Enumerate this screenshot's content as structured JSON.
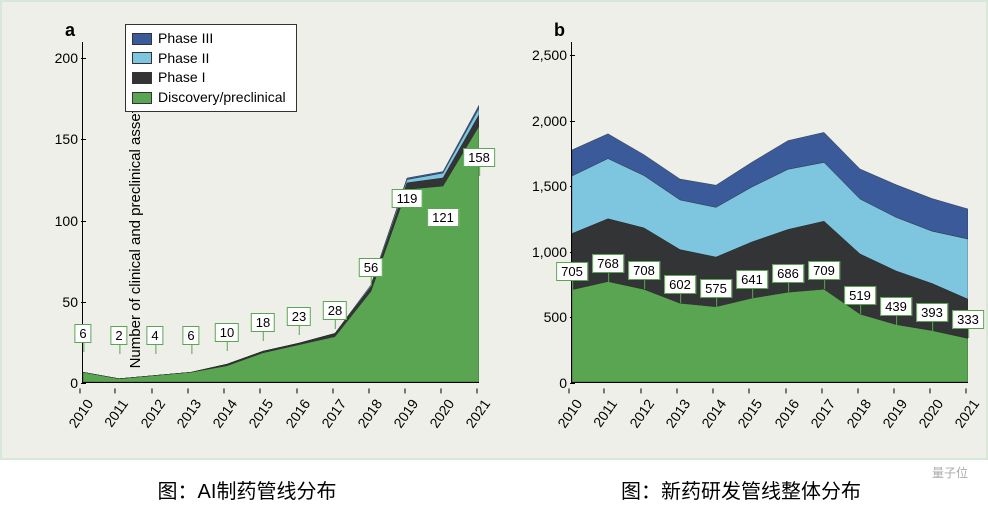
{
  "y_axis_label": "Number of clinical and preclinical assets",
  "legend": [
    {
      "label": "Phase III",
      "color": "#3a5a9a"
    },
    {
      "label": "Phase II",
      "color": "#7ec5e0"
    },
    {
      "label": "Phase I",
      "color": "#333436"
    },
    {
      "label": "Discovery/preclinical",
      "color": "#5aa552"
    }
  ],
  "panel_a": {
    "label": "a",
    "type": "stacked-area",
    "years": [
      "2010",
      "2011",
      "2012",
      "2013",
      "2014",
      "2015",
      "2016",
      "2017",
      "2018",
      "2019",
      "2020",
      "2021"
    ],
    "ylim": [
      0,
      210
    ],
    "yticks": [
      0,
      50,
      100,
      150,
      200
    ],
    "series": {
      "discovery": {
        "color": "#5aa552",
        "values": [
          6,
          2,
          4,
          6,
          10,
          18,
          23,
          28,
          56,
          119,
          121,
          158
        ]
      },
      "phase1": {
        "color": "#333436",
        "values": [
          0,
          0,
          0,
          0,
          1,
          1,
          1,
          2,
          3,
          4,
          5,
          7
        ]
      },
      "phase2": {
        "color": "#7ec5e0",
        "values": [
          0,
          0,
          0,
          0,
          0,
          0,
          0,
          0,
          1,
          2,
          3,
          4
        ]
      },
      "phase3": {
        "color": "#3a5a9a",
        "values": [
          0,
          0,
          0,
          0,
          0,
          0,
          0,
          0,
          0,
          1,
          1,
          2
        ]
      }
    },
    "data_labels": [
      6,
      2,
      4,
      6,
      10,
      18,
      23,
      28,
      56,
      119,
      121,
      158
    ],
    "label_y_offset": [
      30,
      35,
      32,
      28,
      25,
      22,
      20,
      18,
      15,
      -18,
      -40,
      -40
    ],
    "background_color": "#eeefe9",
    "border_color": "#5aa552",
    "tick_fontsize": 14
  },
  "panel_b": {
    "label": "b",
    "type": "stacked-area",
    "years": [
      "2010",
      "2011",
      "2012",
      "2013",
      "2014",
      "2015",
      "2016",
      "2017",
      "2018",
      "2019",
      "2020",
      "2021"
    ],
    "ylim": [
      0,
      2600
    ],
    "yticks": [
      0,
      500,
      1000,
      1500,
      2000,
      2500
    ],
    "series": {
      "discovery": {
        "color": "#5aa552",
        "values": [
          705,
          768,
          708,
          602,
          575,
          641,
          686,
          709,
          519,
          439,
          393,
          333
        ]
      },
      "phase1": {
        "color": "#333436",
        "values": [
          430,
          480,
          470,
          410,
          380,
          430,
          480,
          520,
          460,
          410,
          360,
          300
        ]
      },
      "phase2": {
        "color": "#7ec5e0",
        "values": [
          440,
          460,
          400,
          380,
          380,
          420,
          460,
          450,
          420,
          410,
          400,
          460
        ]
      },
      "phase3": {
        "color": "#3a5a9a",
        "values": [
          200,
          190,
          160,
          160,
          170,
          190,
          220,
          230,
          230,
          250,
          250,
          230
        ]
      }
    },
    "data_labels": [
      705,
      768,
      708,
      602,
      575,
      641,
      686,
      709,
      519,
      439,
      393,
      333
    ],
    "background_color": "#eeefe9",
    "border_color": "#5aa552",
    "tick_fontsize": 14
  },
  "caption_a": "图：AI制药管线分布",
  "caption_b": "图：新药研发管线整体分布",
  "watermark": "量子位"
}
